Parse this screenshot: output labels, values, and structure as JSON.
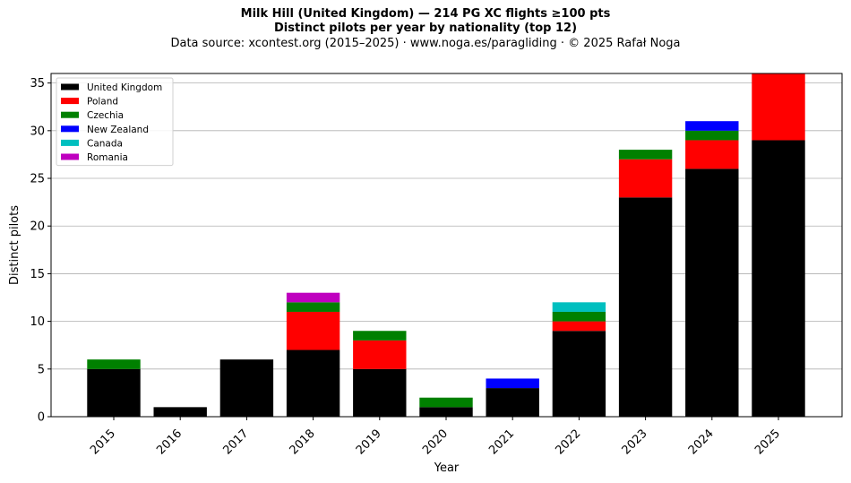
{
  "header": {
    "title_line1": "Milk Hill (United Kingdom)  —  214 PG XC flights ≥100 pts",
    "title_line2": "Distinct pilots per year by nationality (top 12)",
    "title_line3": "Data source: xcontest.org (2015–2025)  ·  www.noga.es/paragliding  ·  © 2025 Rafał Noga"
  },
  "chart_data": {
    "type": "bar",
    "stacked": true,
    "title": "Milk Hill (United Kingdom)  —  214 PG XC flights ≥100 pts",
    "subtitle": "Distinct pilots per year by nationality (top 12)",
    "xlabel": "Year",
    "ylabel": "Distinct pilots",
    "ylim": [
      0,
      36
    ],
    "yticks": [
      0,
      5,
      10,
      15,
      20,
      25,
      30,
      35
    ],
    "grid": "horizontal",
    "legend_position": "top-left",
    "categories": [
      "2015",
      "2016",
      "2017",
      "2018",
      "2019",
      "2020",
      "2021",
      "2022",
      "2023",
      "2024",
      "2025"
    ],
    "series": [
      {
        "name": "United Kingdom",
        "color": "#000000",
        "values": [
          5,
          1,
          6,
          7,
          5,
          1,
          3,
          9,
          23,
          26,
          29
        ]
      },
      {
        "name": "Poland",
        "color": "#ff0000",
        "values": [
          0,
          0,
          0,
          4,
          3,
          0,
          0,
          1,
          4,
          3,
          7
        ]
      },
      {
        "name": "Czechia",
        "color": "#008000",
        "values": [
          1,
          0,
          0,
          1,
          1,
          1,
          0,
          1,
          1,
          1,
          0
        ]
      },
      {
        "name": "New Zealand",
        "color": "#0000ff",
        "values": [
          0,
          0,
          0,
          0,
          0,
          0,
          1,
          0,
          0,
          1,
          0
        ]
      },
      {
        "name": "Canada",
        "color": "#00bfbf",
        "values": [
          0,
          0,
          0,
          0,
          0,
          0,
          0,
          1,
          0,
          0,
          0
        ]
      },
      {
        "name": "Romania",
        "color": "#bf00bf",
        "values": [
          0,
          0,
          0,
          1,
          0,
          0,
          0,
          0,
          0,
          0,
          0
        ]
      }
    ]
  }
}
